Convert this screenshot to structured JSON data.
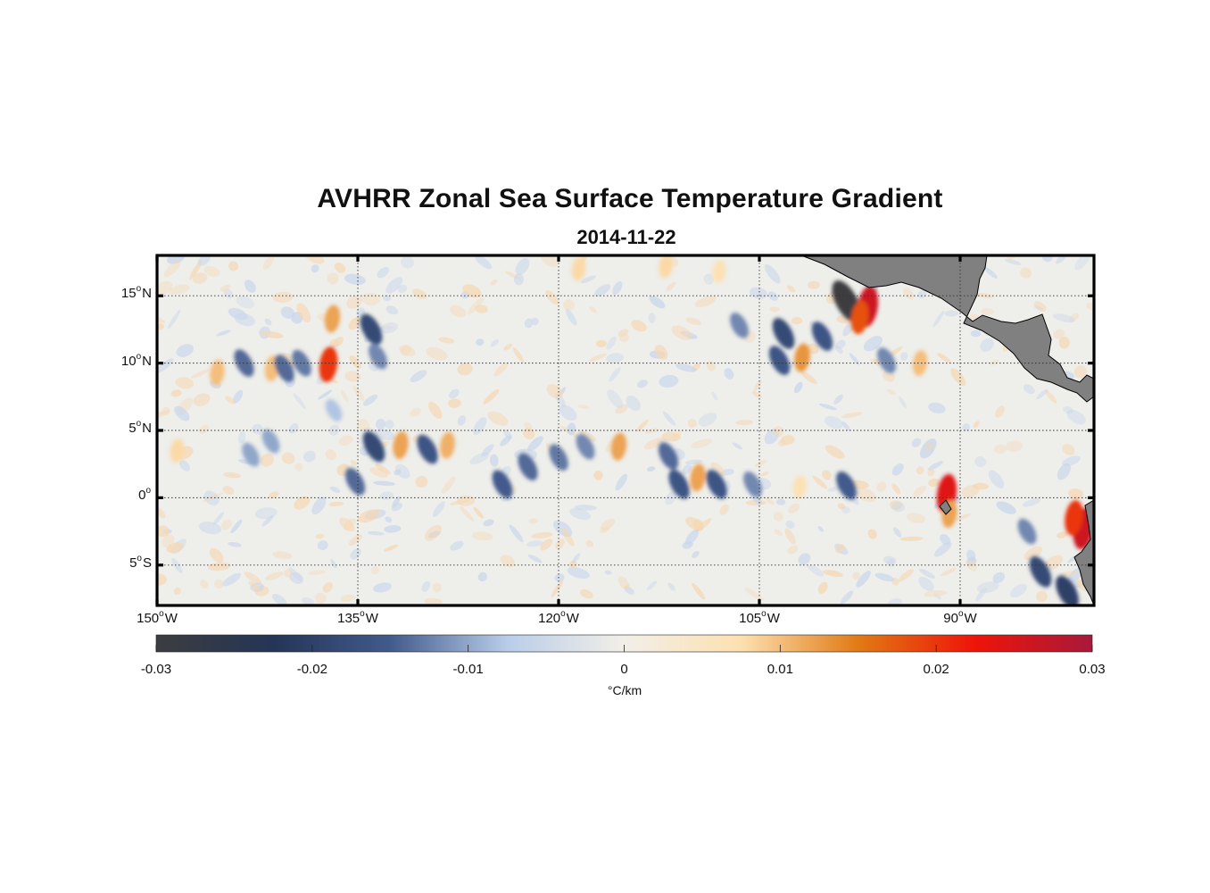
{
  "title": "AVHRR Zonal Sea Surface Temperature Gradient",
  "subtitle": "2014-11-22",
  "map": {
    "lon_range": [
      -150,
      -80
    ],
    "lat_range": [
      -8,
      18
    ],
    "land_color": "#808080",
    "lat_ticks": [
      {
        "value": 15,
        "num": "15",
        "hemi": "N"
      },
      {
        "value": 10,
        "num": "10",
        "hemi": "N"
      },
      {
        "value": 5,
        "num": "5",
        "hemi": "N"
      },
      {
        "value": 0,
        "num": "0",
        "hemi": ""
      },
      {
        "value": -5,
        "num": "5",
        "hemi": "S"
      }
    ],
    "lon_ticks": [
      {
        "value": -150,
        "num": "150",
        "hemi": "W"
      },
      {
        "value": -135,
        "num": "135",
        "hemi": "W"
      },
      {
        "value": -120,
        "num": "120",
        "hemi": "W"
      },
      {
        "value": -105,
        "num": "105",
        "hemi": "W"
      },
      {
        "value": -90,
        "num": "90",
        "hemi": "W"
      }
    ],
    "gridlines": "dotted",
    "features": [
      {
        "lon": -137.2,
        "lat": 9.9,
        "value": 0.02
      },
      {
        "lon": -136.9,
        "lat": 13.3,
        "value": 0.012
      },
      {
        "lon": -145.5,
        "lat": 9.3,
        "value": 0.01
      },
      {
        "lon": -141.4,
        "lat": 9.6,
        "value": 0.01
      },
      {
        "lon": -148.5,
        "lat": 3.5,
        "value": 0.008
      },
      {
        "lon": -143.5,
        "lat": 10.0,
        "value": -0.014
      },
      {
        "lon": -140.5,
        "lat": 9.6,
        "value": -0.014
      },
      {
        "lon": -139.2,
        "lat": 10.0,
        "value": -0.013
      },
      {
        "lon": -134.0,
        "lat": 12.5,
        "value": -0.018
      },
      {
        "lon": -133.5,
        "lat": 10.5,
        "value": -0.012
      },
      {
        "lon": -136.8,
        "lat": 6.5,
        "value": -0.008
      },
      {
        "lon": -133.8,
        "lat": 3.8,
        "value": -0.018
      },
      {
        "lon": -131.8,
        "lat": 3.9,
        "value": 0.012
      },
      {
        "lon": -128.3,
        "lat": 3.9,
        "value": 0.011
      },
      {
        "lon": -129.8,
        "lat": 3.6,
        "value": -0.016
      },
      {
        "lon": -135.2,
        "lat": 1.2,
        "value": -0.014
      },
      {
        "lon": -143.0,
        "lat": 3.2,
        "value": -0.01
      },
      {
        "lon": -141.5,
        "lat": 4.2,
        "value": -0.01
      },
      {
        "lon": -124.2,
        "lat": 1.0,
        "value": -0.015
      },
      {
        "lon": -122.3,
        "lat": 2.3,
        "value": -0.014
      },
      {
        "lon": -120.0,
        "lat": 3.0,
        "value": -0.013
      },
      {
        "lon": -118.0,
        "lat": 3.8,
        "value": -0.012
      },
      {
        "lon": -115.5,
        "lat": 3.8,
        "value": 0.012
      },
      {
        "lon": -111.8,
        "lat": 3.1,
        "value": -0.014
      },
      {
        "lon": -109.6,
        "lat": 1.5,
        "value": 0.012
      },
      {
        "lon": -111.0,
        "lat": 1.0,
        "value": -0.016
      },
      {
        "lon": -108.2,
        "lat": 1.0,
        "value": -0.016
      },
      {
        "lon": -105.5,
        "lat": 1.0,
        "value": -0.012
      },
      {
        "lon": -102.0,
        "lat": 0.8,
        "value": 0.007
      },
      {
        "lon": -98.5,
        "lat": 0.9,
        "value": -0.015
      },
      {
        "lon": -91.0,
        "lat": 0.3,
        "value": 0.024
      },
      {
        "lon": -90.8,
        "lat": -1.2,
        "value": 0.012
      },
      {
        "lon": -98.5,
        "lat": 14.6,
        "value": -0.03
      },
      {
        "lon": -96.9,
        "lat": 14.2,
        "value": 0.026
      },
      {
        "lon": -97.5,
        "lat": 13.4,
        "value": 0.018
      },
      {
        "lon": -100.3,
        "lat": 12.0,
        "value": -0.016
      },
      {
        "lon": -103.2,
        "lat": 12.2,
        "value": -0.018
      },
      {
        "lon": -101.8,
        "lat": 10.4,
        "value": 0.013
      },
      {
        "lon": -103.5,
        "lat": 10.2,
        "value": -0.016
      },
      {
        "lon": -106.5,
        "lat": 12.8,
        "value": -0.012
      },
      {
        "lon": -93.0,
        "lat": 10.0,
        "value": 0.01
      },
      {
        "lon": -95.5,
        "lat": 10.2,
        "value": -0.012
      },
      {
        "lon": -118.5,
        "lat": 17.0,
        "value": 0.008
      },
      {
        "lon": -112.0,
        "lat": 17.2,
        "value": 0.008
      },
      {
        "lon": -108.0,
        "lat": 16.8,
        "value": 0.007
      },
      {
        "lon": -84.0,
        "lat": -5.5,
        "value": -0.018
      },
      {
        "lon": -82.0,
        "lat": -7.0,
        "value": -0.02
      },
      {
        "lon": -85.0,
        "lat": -2.5,
        "value": -0.012
      },
      {
        "lon": -80.8,
        "lat": -2.3,
        "value": 0.026
      },
      {
        "lon": -81.5,
        "lat": -1.5,
        "value": 0.02
      }
    ]
  },
  "colorbar": {
    "min": -0.03,
    "max": 0.03,
    "ticks": [
      "-0.03",
      "-0.02",
      "-0.01",
      "0",
      "0.01",
      "0.02",
      "0.03"
    ],
    "unit": "°C/km",
    "colors": [
      "#3c3d40",
      "#243556",
      "#425a8c",
      "#b9cde9",
      "#f2efe8",
      "#fde0b0",
      "#e17a14",
      "#ee1409",
      "#a8193a"
    ]
  }
}
